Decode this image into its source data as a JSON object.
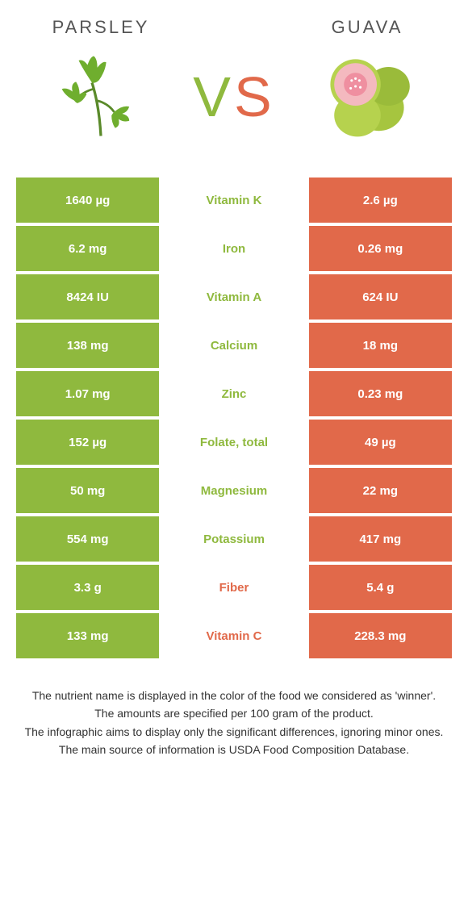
{
  "colors": {
    "green": "#8fb93e",
    "orange": "#e1694a",
    "left_cell": "#8fb93e",
    "right_cell": "#e1694a"
  },
  "left_food": {
    "name": "Parsley"
  },
  "right_food": {
    "name": "Guava"
  },
  "rows": [
    {
      "left": "1640 µg",
      "label": "Vitamin K",
      "right": "2.6 µg",
      "winner": "left"
    },
    {
      "left": "6.2 mg",
      "label": "Iron",
      "right": "0.26 mg",
      "winner": "left"
    },
    {
      "left": "8424 IU",
      "label": "Vitamin A",
      "right": "624 IU",
      "winner": "left"
    },
    {
      "left": "138 mg",
      "label": "Calcium",
      "right": "18 mg",
      "winner": "left"
    },
    {
      "left": "1.07 mg",
      "label": "Zinc",
      "right": "0.23 mg",
      "winner": "left"
    },
    {
      "left": "152 µg",
      "label": "Folate, total",
      "right": "49 µg",
      "winner": "left"
    },
    {
      "left": "50 mg",
      "label": "Magnesium",
      "right": "22 mg",
      "winner": "left"
    },
    {
      "left": "554 mg",
      "label": "Potassium",
      "right": "417 mg",
      "winner": "left"
    },
    {
      "left": "3.3 g",
      "label": "Fiber",
      "right": "5.4 g",
      "winner": "right"
    },
    {
      "left": "133 mg",
      "label": "Vitamin C",
      "right": "228.3 mg",
      "winner": "right"
    }
  ],
  "footnotes": [
    "The nutrient name is displayed in the color of the food we considered as 'winner'.",
    "The amounts are specified per 100 gram of the product.",
    "The infographic aims to display only the significant differences, ignoring minor ones.",
    "The main source of information is USDA Food Composition Database."
  ]
}
